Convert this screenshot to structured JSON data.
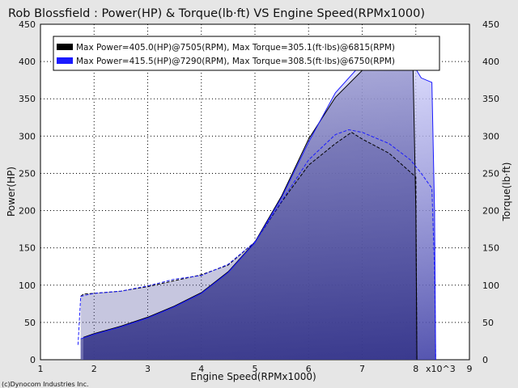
{
  "chart_data": {
    "type": "line",
    "title": "Rob Blossfield : Power(HP) & Torque(lb·ft) VS Engine Speed(RPMx1000)",
    "xlabel": "Engine Speed(RPMx1000)",
    "ylabel": "Power(HP)",
    "y2label": "Torque(lb·ft)",
    "x_multiplier_label": "x10^3",
    "xlim": [
      1,
      9
    ],
    "ylim": [
      0,
      450
    ],
    "y2lim": [
      0,
      450
    ],
    "x_ticks": [
      "1",
      "2",
      "3",
      "4",
      "5",
      "6",
      "7",
      "8",
      "9"
    ],
    "y_ticks": [
      "0",
      "50",
      "100",
      "150",
      "200",
      "250",
      "300",
      "350",
      "400",
      "450"
    ],
    "grid": true,
    "legend_position": "top-left",
    "footer": "(c)Dynocom Industries Inc.",
    "series": [
      {
        "name": "Max Power=405.0(HP)@7505(RPM), Max Torque=305.1(ft·lbs)@6815(RPM)",
        "color": "#000000",
        "power": {
          "x": [
            1.8,
            2.0,
            2.5,
            3.0,
            3.5,
            4.0,
            4.5,
            5.0,
            5.5,
            6.0,
            6.5,
            7.0,
            7.5,
            7.8,
            7.95,
            8.0,
            8.02
          ],
          "y": [
            30,
            35,
            45,
            57,
            72,
            90,
            118,
            158,
            220,
            296,
            352,
            388,
            405,
            398,
            388,
            200,
            0
          ]
        },
        "torque": {
          "x": [
            1.75,
            1.8,
            2.0,
            2.5,
            3.0,
            3.5,
            4.0,
            4.5,
            5.0,
            5.5,
            6.0,
            6.5,
            6.8,
            7.0,
            7.5,
            7.8,
            8.0,
            8.02
          ],
          "y": [
            85,
            88,
            89,
            92,
            98,
            106,
            114,
            127,
            158,
            212,
            261,
            290,
            305,
            296,
            277,
            258,
            245,
            0
          ]
        }
      },
      {
        "name": "Max Power=415.5(HP)@7290(RPM), Max Torque=308.5(ft·lbs)@6750(RPM)",
        "color": "#1a1aff",
        "power": {
          "x": [
            1.75,
            2.0,
            2.5,
            3.0,
            3.5,
            4.0,
            4.5,
            5.0,
            5.5,
            6.0,
            6.5,
            7.0,
            7.3,
            7.6,
            7.9,
            8.1,
            8.3,
            8.35,
            8.37
          ],
          "y": [
            28,
            34,
            44,
            56,
            71,
            89,
            117,
            157,
            218,
            292,
            358,
            398,
            415,
            410,
            402,
            378,
            372,
            200,
            0
          ]
        },
        "torque": {
          "x": [
            1.7,
            1.75,
            2.0,
            2.5,
            3.0,
            3.5,
            4.0,
            4.5,
            5.0,
            5.5,
            6.0,
            6.5,
            6.75,
            7.0,
            7.5,
            7.9,
            8.1,
            8.3,
            8.35,
            8.37
          ],
          "y": [
            20,
            85,
            89,
            92,
            99,
            108,
            113,
            128,
            158,
            213,
            268,
            302,
            308.5,
            305,
            290,
            268,
            250,
            230,
            120,
            0
          ]
        }
      }
    ]
  }
}
